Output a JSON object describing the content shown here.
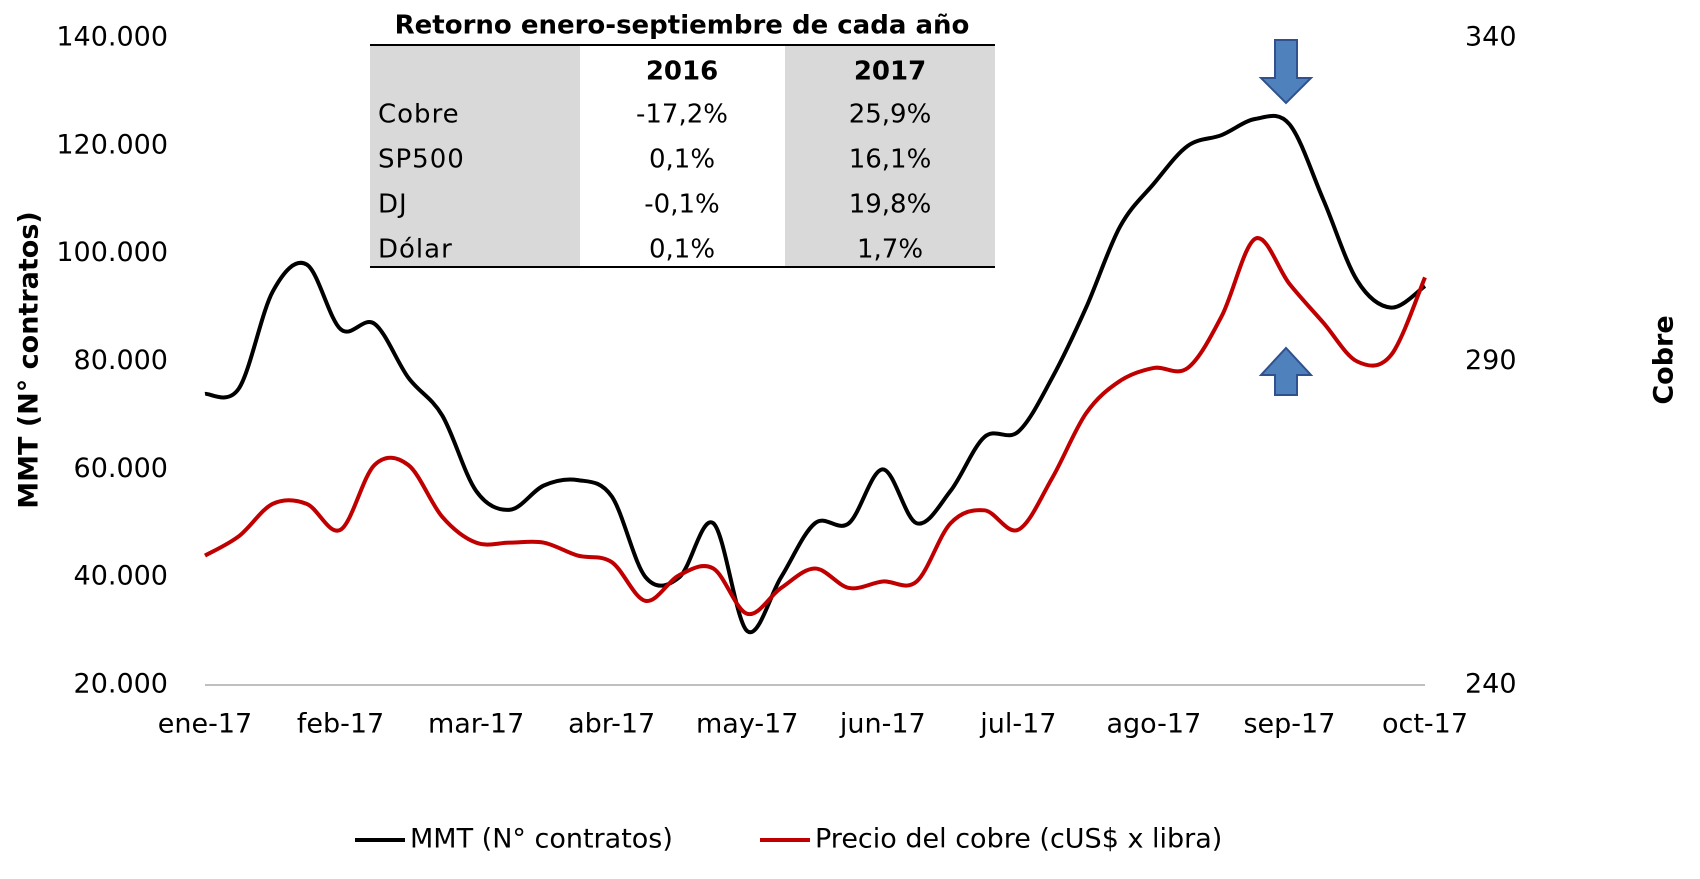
{
  "chart_data": {
    "type": "line",
    "y_label": "MMT (N° contratos)",
    "y2_label": "Cobre",
    "categories": [
      "ene-17",
      null,
      null,
      null,
      "feb-17",
      null,
      null,
      null,
      "mar-17",
      null,
      null,
      null,
      "abr-17",
      null,
      null,
      null,
      "may-17",
      null,
      null,
      null,
      "jun-17",
      null,
      null,
      null,
      "jul-17",
      null,
      null,
      null,
      "ago-17",
      null,
      null,
      null,
      "sep-17",
      null,
      null,
      null,
      "oct-17"
    ],
    "ylim": [
      20000,
      140000
    ],
    "yticks": [
      {
        "value": 20000,
        "label": "20.000"
      },
      {
        "value": 40000,
        "label": "40.000"
      },
      {
        "value": 60000,
        "label": "60.000"
      },
      {
        "value": 80000,
        "label": "80.000"
      },
      {
        "value": 100000,
        "label": "100.000"
      },
      {
        "value": 120000,
        "label": "120.000"
      },
      {
        "value": 140000,
        "label": "140.000"
      }
    ],
    "y2lim": [
      240,
      340
    ],
    "y2ticks": [
      240,
      290,
      340
    ],
    "legend": "bottom",
    "series": [
      {
        "name": "MMT (N° contratos)",
        "color": "#000000",
        "values": [
          74000,
          75000,
          93000,
          98000,
          86000,
          87000,
          77000,
          70000,
          56000,
          52500,
          57000,
          58000,
          55000,
          40000,
          40000,
          50000,
          30000,
          40000,
          50000,
          50000,
          60000,
          50000,
          56000,
          66000,
          67000,
          77000,
          90000,
          105000,
          113000,
          120000,
          122000,
          125000,
          124000,
          110000,
          95000,
          90000,
          94000
        ]
      },
      {
        "name": "Precio del cobre (cUS$ x libra)",
        "color": "#c00000",
        "axis": "y2",
        "values": [
          260,
          263,
          268,
          268,
          264,
          274,
          274,
          266,
          262,
          262,
          262,
          260,
          259,
          253,
          257,
          258,
          251,
          255,
          258,
          255,
          256,
          256,
          265,
          267,
          264,
          272,
          282,
          287,
          289,
          289,
          297,
          309,
          302,
          296,
          290,
          291,
          303
        ]
      }
    ]
  },
  "table": {
    "title": "Retorno enero-septiembre de cada año",
    "columns": [
      "2016",
      "2017"
    ],
    "rows": [
      {
        "label": "Cobre",
        "values": [
          "-17,2%",
          "25,9%"
        ]
      },
      {
        "label": "SP500",
        "values": [
          "0,1%",
          "16,1%"
        ]
      },
      {
        "label": "DJ",
        "values": [
          "-0,1%",
          "19,8%"
        ]
      },
      {
        "label": "Dólar",
        "values": [
          "0,1%",
          "1,7%"
        ]
      }
    ]
  }
}
